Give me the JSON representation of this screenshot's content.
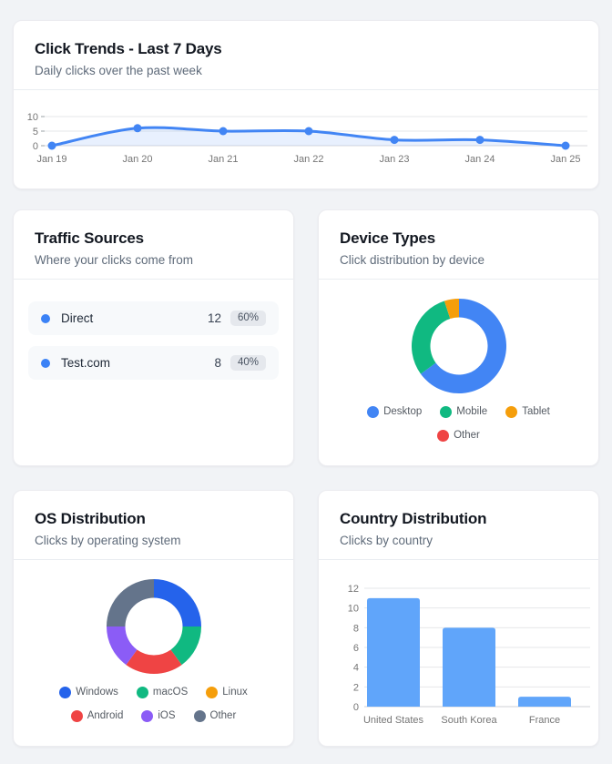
{
  "page": {
    "background": "#f1f3f6"
  },
  "cards": {
    "trends": {
      "title": "Click Trends - Last 7 Days",
      "subtitle": "Daily clicks over the past week"
    },
    "traffic": {
      "title": "Traffic Sources",
      "subtitle": "Where your clicks come from",
      "dot_color": "#3b82f6",
      "rows": [
        {
          "label": "Direct",
          "value": "12",
          "percent": "60%"
        },
        {
          "label": "Test.com",
          "value": "8",
          "percent": "40%"
        }
      ]
    },
    "devices": {
      "title": "Device Types",
      "subtitle": "Click distribution by device"
    },
    "os": {
      "title": "OS Distribution",
      "subtitle": "Clicks by operating system"
    },
    "countries": {
      "title": "Country Distribution",
      "subtitle": "Clicks by country"
    }
  },
  "chart_data": [
    {
      "id": "trends",
      "type": "area",
      "title": "Click Trends - Last 7 Days",
      "x": [
        "Jan 19",
        "Jan 20",
        "Jan 21",
        "Jan 22",
        "Jan 23",
        "Jan 24",
        "Jan 25"
      ],
      "values": [
        0,
        6,
        5,
        5,
        2,
        2,
        0
      ],
      "ylim": [
        0,
        10
      ],
      "yticks": [
        0,
        5,
        10
      ],
      "grid": true,
      "legend": "none",
      "line_color": "#4285f4",
      "fill_color": "rgba(66,133,244,0.12)"
    },
    {
      "id": "devices",
      "type": "pie",
      "title": "Device Types",
      "donut": true,
      "legend_position": "bottom",
      "segments": [
        {
          "label": "Desktop",
          "value": 13,
          "color": "#4285f4"
        },
        {
          "label": "Mobile",
          "value": 6,
          "color": "#10b981"
        },
        {
          "label": "Tablet",
          "value": 1,
          "color": "#f59e0b"
        },
        {
          "label": "Other",
          "value": 0,
          "color": "#ef4444"
        }
      ],
      "legend_rows": [
        [
          "Desktop",
          "Mobile",
          "Tablet"
        ],
        [
          "Other"
        ]
      ]
    },
    {
      "id": "os",
      "type": "pie",
      "title": "OS Distribution",
      "donut": true,
      "legend_position": "bottom",
      "segments": [
        {
          "label": "Windows",
          "value": 5,
          "color": "#2563eb"
        },
        {
          "label": "macOS",
          "value": 3,
          "color": "#10b981"
        },
        {
          "label": "Linux",
          "value": 0,
          "color": "#f59e0b"
        },
        {
          "label": "Android",
          "value": 4,
          "color": "#ef4444"
        },
        {
          "label": "iOS",
          "value": 3,
          "color": "#8b5cf6"
        },
        {
          "label": "Other",
          "value": 5,
          "color": "#64748b"
        }
      ],
      "legend_rows": [
        [
          "Windows",
          "macOS",
          "Linux"
        ],
        [
          "Android",
          "iOS",
          "Other"
        ]
      ]
    },
    {
      "id": "countries",
      "type": "bar",
      "title": "Country Distribution",
      "categories": [
        "United States",
        "South Korea",
        "France"
      ],
      "values": [
        11,
        8,
        1
      ],
      "ylim": [
        0,
        12
      ],
      "yticks": [
        0,
        2,
        4,
        6,
        8,
        10,
        12
      ],
      "grid": true,
      "legend": "none",
      "bar_color": "#60a5fa"
    }
  ]
}
